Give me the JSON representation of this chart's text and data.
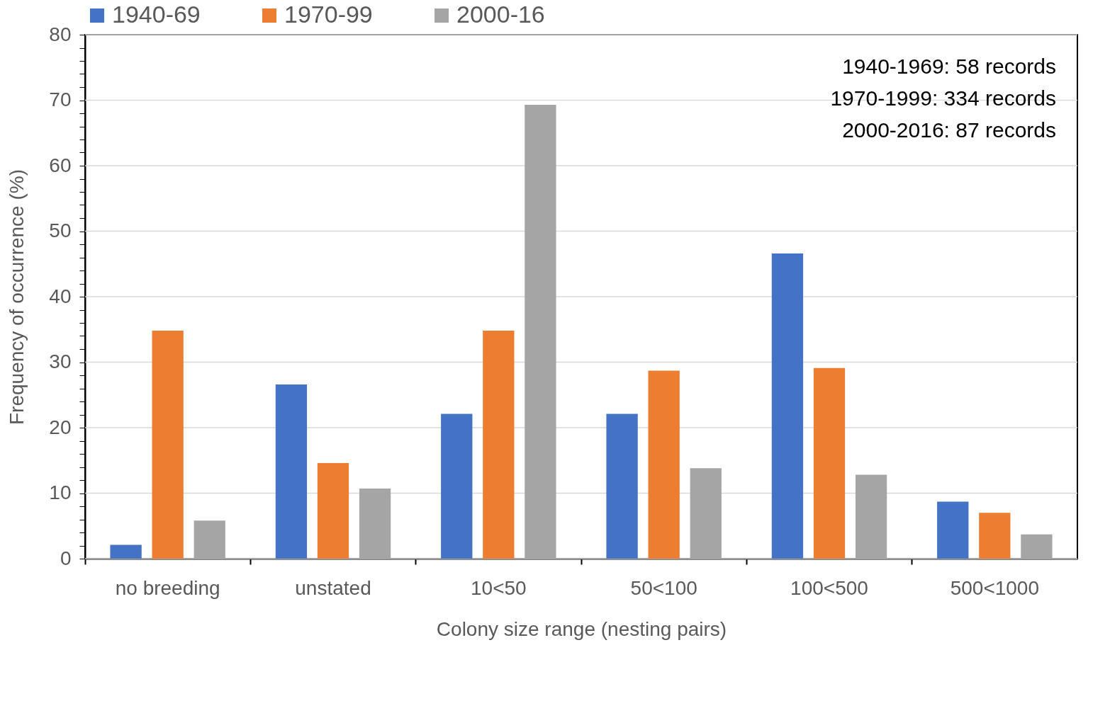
{
  "chart_data": {
    "type": "bar",
    "xlabel": "Colony size range (nesting pairs)",
    "ylabel": "Frequency of occurrence (%)",
    "categories": [
      "no breeding",
      "unstated",
      "10<50",
      "50<100",
      "100<500",
      "500<1000"
    ],
    "series": [
      {
        "name": "1940-69",
        "color": "#4472c4",
        "values": [
          2.1,
          26.6,
          22.1,
          22.1,
          46.6,
          8.7
        ]
      },
      {
        "name": "1970-99",
        "color": "#ed7d31",
        "values": [
          34.8,
          14.6,
          34.8,
          28.7,
          29.1,
          7.0
        ]
      },
      {
        "name": "2000-16",
        "color": "#a5a5a5",
        "values": [
          5.8,
          10.7,
          69.3,
          13.8,
          12.8,
          3.7
        ]
      }
    ],
    "ylim": [
      0,
      80
    ],
    "yticks": [
      0,
      {
        "value": 2,
        "label": null
      },
      {
        "value": 4,
        "label": null
      },
      {
        "value": 6,
        "label": null
      },
      {
        "value": 8,
        "label": null
      },
      10,
      {
        "value": 12,
        "label": null
      },
      {
        "value": 14,
        "label": null
      },
      {
        "value": 16,
        "label": null
      },
      {
        "value": 18,
        "label": null
      },
      20,
      {
        "value": 22,
        "label": null
      },
      {
        "value": 24,
        "label": null
      },
      {
        "value": 26,
        "label": null
      },
      {
        "value": 28,
        "label": null
      },
      30,
      {
        "value": 32,
        "label": null
      },
      {
        "value": 34,
        "label": null
      },
      {
        "value": 36,
        "label": null
      },
      {
        "value": 38,
        "label": null
      },
      40,
      {
        "value": 42,
        "label": null
      },
      {
        "value": 44,
        "label": null
      },
      {
        "value": 46,
        "label": null
      },
      {
        "value": 48,
        "label": null
      },
      50,
      {
        "value": 52,
        "label": null
      },
      {
        "value": 54,
        "label": null
      },
      {
        "value": 56,
        "label": null
      },
      {
        "value": 58,
        "label": null
      },
      60,
      {
        "value": 62,
        "label": null
      },
      {
        "value": 64,
        "label": null
      },
      {
        "value": 66,
        "label": null
      },
      {
        "value": 68,
        "label": null
      },
      70,
      {
        "value": 72,
        "label": null
      },
      {
        "value": 74,
        "label": null
      },
      {
        "value": 76,
        "label": null
      },
      {
        "value": 78,
        "label": null
      },
      80
    ],
    "annotations": [
      "1940-1969: 58 records",
      "1970-1999: 334 records",
      "2000-2016: 87 records"
    ],
    "grid": "y",
    "legend": "top"
  }
}
